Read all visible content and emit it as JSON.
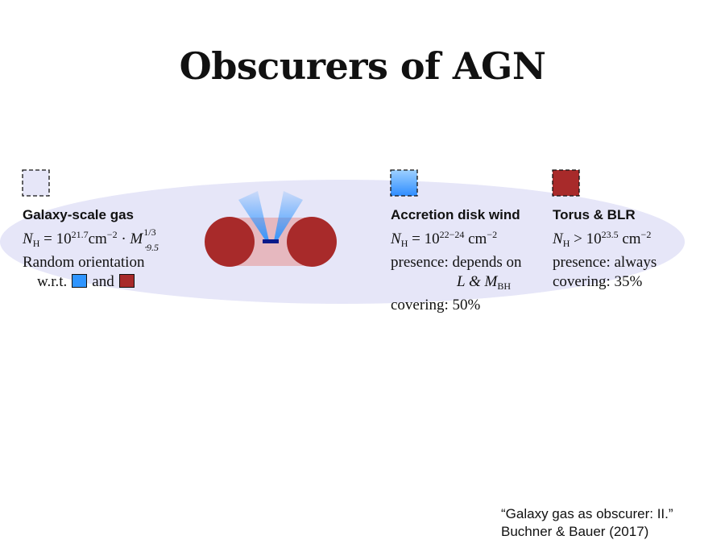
{
  "title": "Obscurers of AGN",
  "galaxy_gas": {
    "heading": "Galaxy-scale gas",
    "nh_base": "10",
    "nh_exp": "21.7",
    "nh_unit": "cm",
    "nh_unit_exp": "−2",
    "mass_exp": "1/3",
    "mass_sub": "⋅9.5",
    "orientation_label": "Random orientation",
    "wrt_label": "w.r.t.",
    "and_label": "and"
  },
  "disk_wind": {
    "heading": "Accretion disk wind",
    "nh_base": "10",
    "nh_exp": "22−24",
    "nh_unit": "cm",
    "nh_unit_exp": "−2",
    "presence_label": "presence: depends on",
    "depends_on": "L & M",
    "depends_sub": "BH",
    "covering": "covering: 50%"
  },
  "torus": {
    "heading": "Torus & BLR",
    "nh_base": "10",
    "nh_exp": "23.5",
    "nh_unit": "cm",
    "nh_unit_exp": "−2",
    "presence": "presence: always",
    "covering": "covering: 35%"
  },
  "citation": {
    "line1": "“Galaxy gas as obscurer: II.”",
    "line2": "Buchner & Bauer (2017)"
  },
  "colors": {
    "galaxy_ellipse": "#e6e6f8",
    "wind_blue": "#2f95ff",
    "torus_red": "#a82a2a",
    "torus_bridge": "#e6b8bf",
    "disk_navy": "#0a1a8a"
  }
}
